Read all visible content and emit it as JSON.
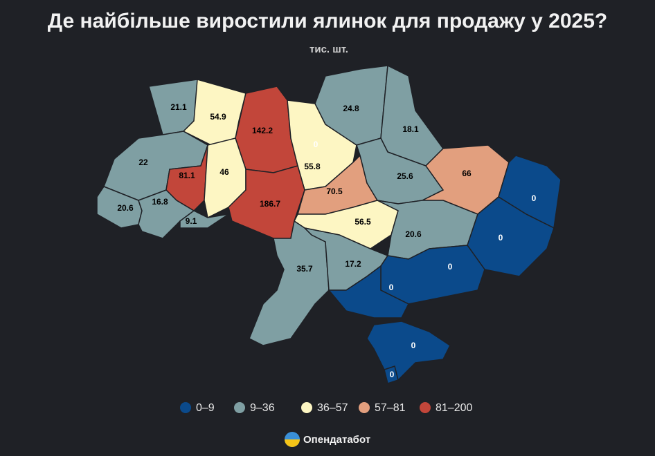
{
  "title": "Де найбільше виростили ялинок для продажу у 2025?",
  "subtitle": "тис. шт.",
  "brand": "Опендатабот",
  "legend": [
    {
      "label": "0–9",
      "min": 0,
      "max": 9,
      "color": "#0b4a8b"
    },
    {
      "label": "9–36",
      "min": 9,
      "max": 36,
      "color": "#7f9fa3"
    },
    {
      "label": "36–57",
      "min": 36,
      "max": 57,
      "color": "#fdf6c3"
    },
    {
      "label": "57–81",
      "min": 57,
      "max": 81,
      "color": "#e29f7e"
    },
    {
      "label": "81–200",
      "min": 81,
      "max": 200,
      "color": "#c2463a"
    }
  ],
  "regions": [
    {
      "value": 21.1
    },
    {
      "value": 54.9
    },
    {
      "value": 142.2
    },
    {
      "value": 0
    },
    {
      "value": 55.8
    },
    {
      "value": 24.8
    },
    {
      "value": 18.1
    },
    {
      "value": 22
    },
    {
      "value": 81.1
    },
    {
      "value": 46
    },
    {
      "value": 186.7
    },
    {
      "value": 70.5
    },
    {
      "value": 25.6
    },
    {
      "value": 66
    },
    {
      "value": 0
    },
    {
      "value": 20.6
    },
    {
      "value": 16.8
    },
    {
      "value": 9.1
    },
    {
      "value": 56.5
    },
    {
      "value": 20.6
    },
    {
      "value": 0
    },
    {
      "value": 35.7
    },
    {
      "value": 17.2
    },
    {
      "value": 0
    },
    {
      "value": 0
    },
    {
      "value": 0
    },
    {
      "value": 0
    }
  ]
}
